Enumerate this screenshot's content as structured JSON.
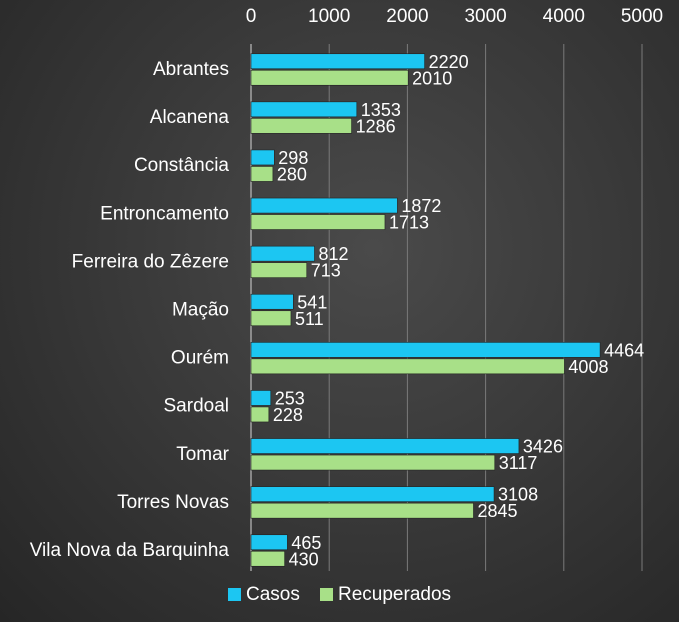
{
  "chart_data": {
    "type": "bar",
    "orientation": "horizontal",
    "title": "",
    "xlabel": "",
    "ylabel": "",
    "xlim": [
      0,
      5000
    ],
    "x_ticks": [
      "0",
      "1000",
      "2000",
      "3000",
      "4000",
      "5000"
    ],
    "x_tick_values": [
      0,
      1000,
      2000,
      3000,
      4000,
      5000
    ],
    "axis_position": "top",
    "grid": true,
    "legend_position": "bottom",
    "categories": [
      "Abrantes",
      "Alcanena",
      "Constância",
      "Entroncamento",
      "Ferreira do Zêzere",
      "Mação",
      "Ourém",
      "Sardoal",
      "Tomar",
      "Torres Novas",
      "Vila Nova da Barquinha"
    ],
    "series": [
      {
        "name": "Casos",
        "color": "#1cc6f2",
        "values": [
          2220,
          1353,
          298,
          1872,
          812,
          541,
          4464,
          253,
          3426,
          3108,
          465
        ],
        "labels": [
          "2220",
          "1353",
          "298",
          "1872",
          "812",
          "541",
          "4464",
          "253",
          "3426",
          "3108",
          "465"
        ]
      },
      {
        "name": "Recuperados",
        "color": "#a8e088",
        "values": [
          2010,
          1286,
          280,
          1713,
          713,
          511,
          4008,
          228,
          3117,
          2845,
          430
        ],
        "labels": [
          "2010",
          "1286",
          "280",
          "1713",
          "713",
          "511",
          "4008",
          "228",
          "3117",
          "2845",
          "430"
        ]
      }
    ]
  }
}
